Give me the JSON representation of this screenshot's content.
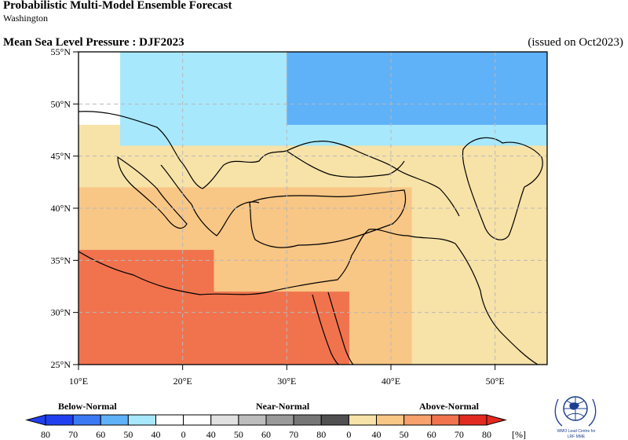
{
  "header": {
    "title": "Probabilistic Multi-Model Ensemble Forecast",
    "subtitle": "Washington",
    "variable": "Mean Sea Level Pressure : DJF2023",
    "issued": "(issued on Oct2023)"
  },
  "map": {
    "lon_range": [
      10,
      55
    ],
    "lat_range": [
      25,
      55
    ],
    "lon_ticks": [
      "10°E",
      "20°E",
      "30°E",
      "40°E",
      "50°E"
    ],
    "lat_ticks": [
      "25°N",
      "30°N",
      "35°N",
      "40°N",
      "45°N",
      "50°N",
      "55°N"
    ],
    "grid": "dashed",
    "category_fills": [
      {
        "category": "above-normal 40-50",
        "lon": [
          10,
          55
        ],
        "lat": [
          25,
          48
        ]
      },
      {
        "category": "above-normal 50-60",
        "lon": [
          10,
          42
        ],
        "lat": [
          25,
          42
        ]
      },
      {
        "category": "above-normal 60-70",
        "lon": [
          10,
          23
        ],
        "lat": [
          25,
          36
        ]
      },
      {
        "category": "above-normal 60-70",
        "lon": [
          22,
          36
        ],
        "lat": [
          25,
          32
        ]
      },
      {
        "category": "below-normal 40-50",
        "lon": [
          14,
          55
        ],
        "lat": [
          46,
          55
        ]
      },
      {
        "category": "below-normal 50-60",
        "lon": [
          30,
          55
        ],
        "lat": [
          48,
          55
        ]
      }
    ]
  },
  "legend": {
    "categories": [
      "Below-Normal",
      "Near-Normal",
      "Above-Normal"
    ],
    "labels": [
      "80",
      "70",
      "60",
      "50",
      "40",
      "0",
      "40",
      "50",
      "60",
      "70",
      "80",
      "0",
      "40",
      "50",
      "60",
      "70",
      "80"
    ],
    "unit": "[%]",
    "colors": [
      "#1f3ff0",
      "#3a78f4",
      "#5fb1f8",
      "#a7e8fc",
      "#ffffff",
      "#ffffff",
      "#e1e1e1",
      "#bdbdbd",
      "#9a9a9a",
      "#767676",
      "#505050",
      "#f7e2a8",
      "#f8c685",
      "#f6a16e",
      "#f0734e",
      "#e32a20"
    ]
  },
  "logo": {
    "caption_line1": "WMO Lead Centre for",
    "caption_line2": "LRF MME"
  }
}
